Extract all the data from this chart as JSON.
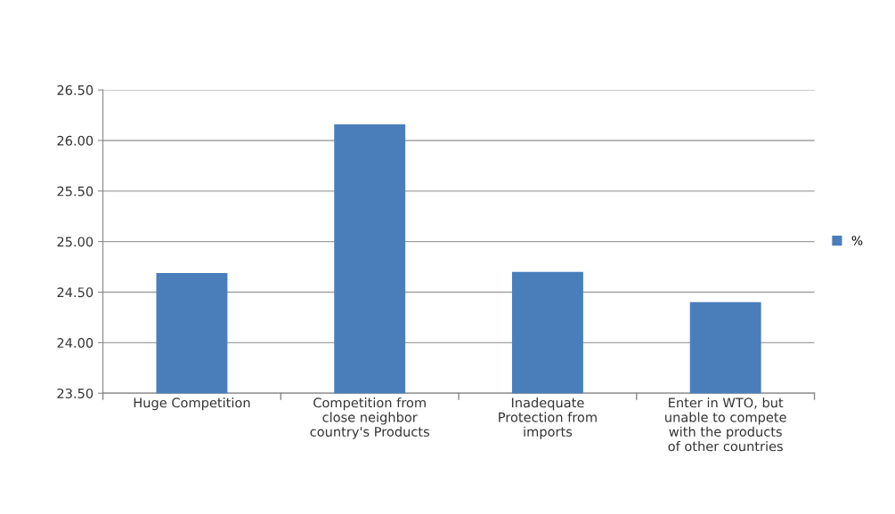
{
  "chart_data": {
    "type": "bar",
    "categories": [
      "Huge Competition",
      "Competition from\nclose neighbor\ncountry's Products",
      "Inadequate\nProtection from\nimports",
      "Enter in WTO, but\nunable to compete\nwith the products\nof other countries"
    ],
    "series": [
      {
        "name": "%",
        "color": "#4a7ebb",
        "values": [
          24.69,
          26.16,
          24.7,
          24.4
        ]
      }
    ],
    "ylim": [
      23.5,
      26.5
    ],
    "yticks": [
      {
        "value": 23.5,
        "label": "23.50"
      },
      {
        "value": 24.0,
        "label": "24.00"
      },
      {
        "value": 24.5,
        "label": "24.50"
      },
      {
        "value": 25.0,
        "label": "25.00"
      },
      {
        "value": 25.5,
        "label": "25.50"
      },
      {
        "value": 26.0,
        "label": "26.00"
      },
      {
        "value": 26.5,
        "label": "26.50"
      }
    ],
    "grid": "y",
    "legend": "right"
  }
}
